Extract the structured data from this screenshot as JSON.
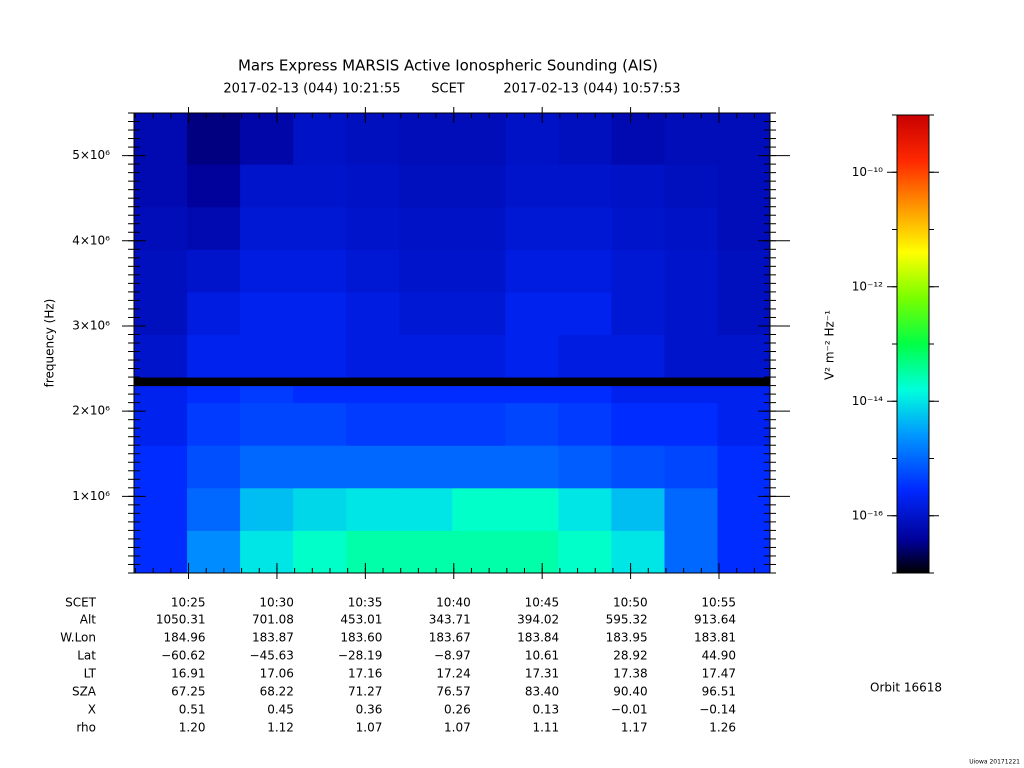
{
  "chart_data": {
    "type": "spectrogram",
    "title": "Mars Express MARSIS Active Ionospheric Sounding (AIS)",
    "start_time": "2017-02-13 (044) 10:21:55",
    "scet_label": "SCET",
    "end_time": "2017-02-13 (044) 10:57:53",
    "ylabel": "frequency (Hz)",
    "xlim": [
      37315,
      39473
    ],
    "xticks": [
      {
        "value": 37500,
        "label": "10:25"
      },
      {
        "value": 37800,
        "label": "10:30"
      },
      {
        "value": 38100,
        "label": "10:35"
      },
      {
        "value": 38400,
        "label": "10:40"
      },
      {
        "value": 38700,
        "label": "10:45"
      },
      {
        "value": 39000,
        "label": "10:50"
      },
      {
        "value": 39300,
        "label": "10:55"
      }
    ],
    "ylim": [
      100000,
      5500000
    ],
    "yticks": [
      {
        "value": 1000000,
        "label": "1×10⁶"
      },
      {
        "value": 2000000,
        "label": "2×10⁶"
      },
      {
        "value": 3000000,
        "label": "3×10⁶"
      },
      {
        "value": 4000000,
        "label": "4×10⁶"
      },
      {
        "value": 5000000,
        "label": "5×10⁶"
      }
    ],
    "x_bins": [
      37315,
      37495,
      37675,
      37855,
      38035,
      38215,
      38395,
      38575,
      38755,
      38935,
      39115,
      39295,
      39473
    ],
    "y_bins": [
      100000,
      600000,
      1100000,
      1600000,
      2100000,
      2300000,
      2400000,
      2900000,
      3400000,
      3900000,
      4400000,
      4900000,
      5500000
    ],
    "z": [
      [
        3e-16,
        2e-15,
        1e-14,
        2e-14,
        3e-14,
        3e-14,
        3e-14,
        3e-14,
        2e-14,
        1e-14,
        1e-15,
        3e-16
      ],
      [
        3e-16,
        1e-15,
        5e-15,
        8e-15,
        1e-14,
        1e-14,
        2e-14,
        2e-14,
        1e-14,
        5e-15,
        1e-15,
        3e-16
      ],
      [
        3e-16,
        6e-16,
        1e-15,
        1e-15,
        1e-15,
        1e-15,
        1e-15,
        1e-15,
        8e-16,
        6e-16,
        5e-16,
        3e-16
      ],
      [
        2e-16,
        4e-16,
        5e-16,
        5e-16,
        4e-16,
        4e-16,
        4e-16,
        5e-16,
        4e-16,
        3e-16,
        3e-16,
        2e-16
      ],
      [
        2e-16,
        3e-16,
        4e-16,
        3e-16,
        3e-16,
        3e-16,
        3e-16,
        3e-16,
        3e-16,
        2e-16,
        2e-16,
        2e-16
      ],
      [
        1e-17,
        1e-17,
        1e-17,
        1e-17,
        1e-17,
        1e-17,
        1e-17,
        1e-17,
        1e-17,
        1e-17,
        1e-17,
        1e-17
      ],
      [
        1e-16,
        2e-16,
        2e-16,
        2e-16,
        1.5e-16,
        1.5e-16,
        1.5e-16,
        2e-16,
        1.5e-16,
        1.5e-16,
        1e-16,
        1e-16
      ],
      [
        8e-17,
        1.5e-16,
        2e-16,
        2e-16,
        1.5e-16,
        1.2e-16,
        1.2e-16,
        2e-16,
        2e-16,
        1.2e-16,
        1e-16,
        8e-17
      ],
      [
        8e-17,
        1e-16,
        1.5e-16,
        1.5e-16,
        1.2e-16,
        1e-16,
        1e-16,
        1.5e-16,
        1.5e-16,
        1.2e-16,
        1e-16,
        8e-17
      ],
      [
        7e-17,
        6e-17,
        1.2e-16,
        1.2e-16,
        1e-16,
        9e-17,
        9e-17,
        1.2e-16,
        1.2e-16,
        1e-16,
        9e-17,
        7e-17
      ],
      [
        6e-17,
        4e-17,
        1e-16,
        1e-16,
        9e-17,
        8e-17,
        8e-17,
        1e-16,
        1e-16,
        9e-17,
        8e-17,
        7e-17
      ],
      [
        6e-17,
        3e-17,
        5e-17,
        9e-17,
        8e-17,
        7e-17,
        7e-17,
        9e-17,
        8e-17,
        6e-17,
        7e-17,
        7e-17
      ]
    ],
    "zscale": "log",
    "zlim": [
      1e-17,
      1e-09
    ],
    "zticks": [
      {
        "value": 1e-16,
        "label": "10⁻¹⁶"
      },
      {
        "value": 1e-14,
        "label": "10⁻¹⁴"
      },
      {
        "value": 1e-12,
        "label": "10⁻¹²"
      },
      {
        "value": 1e-10,
        "label": "10⁻¹⁰"
      }
    ],
    "zlabel": "V² m⁻² Hz⁻¹",
    "colormap": "rainbow",
    "ephemeris": {
      "scet_label": "SCET",
      "rows": [
        {
          "label": "Alt",
          "values": [
            "1050.31",
            "701.08",
            "453.01",
            "343.71",
            "394.02",
            "595.32",
            "913.64"
          ]
        },
        {
          "label": "W.Lon",
          "values": [
            "184.96",
            "183.87",
            "183.60",
            "183.67",
            "183.84",
            "183.95",
            "183.81"
          ]
        },
        {
          "label": "Lat",
          "values": [
            "−60.62",
            "−45.63",
            "−28.19",
            "−8.97",
            "10.61",
            "28.92",
            "44.90"
          ]
        },
        {
          "label": "LT",
          "values": [
            "16.91",
            "17.06",
            "17.16",
            "17.24",
            "17.31",
            "17.38",
            "17.47"
          ]
        },
        {
          "label": "SZA",
          "values": [
            "67.25",
            "68.22",
            "71.27",
            "76.57",
            "83.40",
            "90.40",
            "96.51"
          ]
        },
        {
          "label": "X",
          "values": [
            "0.51",
            "0.45",
            "0.36",
            "0.26",
            "0.13",
            "−0.01",
            "−0.14"
          ]
        },
        {
          "label": "rho",
          "values": [
            "1.20",
            "1.12",
            "1.07",
            "1.07",
            "1.11",
            "1.17",
            "1.26"
          ]
        }
      ]
    },
    "orbit_label": "Orbit 16618",
    "footer": "Uiowa 20171221"
  }
}
